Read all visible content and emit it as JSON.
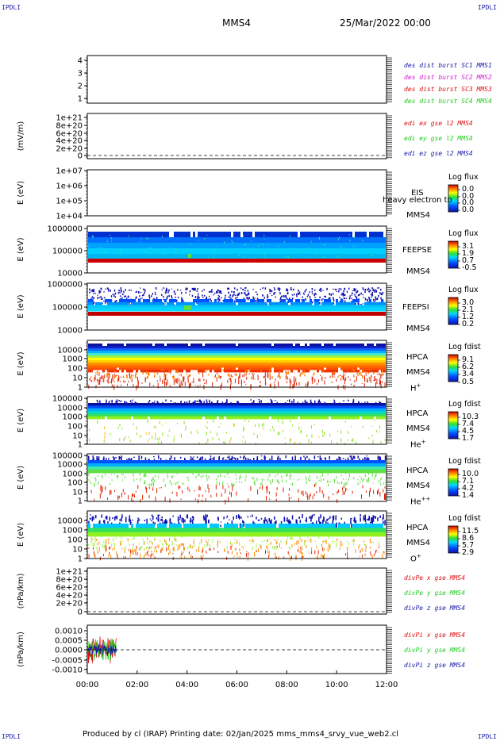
{
  "page": {
    "corner_label": "IPDLI",
    "spacecraft": "MMS4",
    "date_time": "25/Mar/2022 00:00",
    "footer": "Produced by cl (IRAP)   Printing date: 02/Jan/2025   mms_mms4_srvy_vue_web2.cl"
  },
  "colors": {
    "blue": "#1a1aa8",
    "magenta": "#d020d0",
    "red": "#dd1111",
    "green": "#22cc22"
  },
  "chart_data": [
    {
      "id": "dist",
      "type": "line",
      "yticks": [
        "4",
        "3",
        "2",
        "1"
      ],
      "ylim": [
        0.5,
        4.5
      ],
      "legend": [
        {
          "text": "des dist burst SC1 MMS1",
          "color": "blue"
        },
        {
          "text": "des dist burst SC2 MMS2",
          "color": "magenta"
        },
        {
          "text": "des dist burst SC3 MMS3",
          "color": "red"
        },
        {
          "text": "des dist burst SC4 MMS4",
          "color": "green"
        }
      ],
      "series": []
    },
    {
      "id": "edi",
      "type": "line",
      "ylabel": "(mV/m)",
      "yticks": [
        "1e+21",
        "8e+20",
        "6e+20",
        "4e+20",
        "2e+20",
        "0"
      ],
      "ylim": [
        0,
        1e+21
      ],
      "legend": [
        {
          "text": "edi ex gse l2 MMS4",
          "color": "red"
        },
        {
          "text": "edi ey gse l2 MMS4",
          "color": "green"
        },
        {
          "text": "edi ez gse l2 MMS4",
          "color": "blue"
        }
      ],
      "series": []
    },
    {
      "id": "eis",
      "type": "heatmap",
      "ylabel": "E (eV)",
      "yticks": [
        "1e+07",
        "1e+06",
        "1e+05",
        "1e+04"
      ],
      "scale": "log",
      "ylim": [
        10000.0,
        10000000.0
      ],
      "labels": [
        "EIS",
        "heavy electron to",
        "MMS4"
      ],
      "colorbar": {
        "title": "Log flux",
        "ticks": [
          "0.0",
          "0.0",
          "0.0",
          "0.0"
        ]
      }
    },
    {
      "id": "feepse",
      "type": "heatmap",
      "ylabel": "E (eV)",
      "yticks": [
        "1000000",
        "100000",
        "10000"
      ],
      "scale": "log",
      "ylim": [
        10000.0,
        1000000.0
      ],
      "labels": [
        "FEEPSE",
        "MMS4"
      ],
      "colorbar": {
        "title": "Log flux",
        "ticks": [
          "3.1",
          "1.9",
          "0.7",
          "-0.5"
        ]
      }
    },
    {
      "id": "feepsi",
      "type": "heatmap",
      "ylabel": "E (eV)",
      "yticks": [
        "1000000",
        "100000",
        "10000"
      ],
      "scale": "log",
      "ylim": [
        10000.0,
        1000000.0
      ],
      "labels": [
        "FEEPSI",
        "MMS4"
      ],
      "colorbar": {
        "title": "Log flux",
        "ticks": [
          "3.0",
          "2.1",
          "1.2",
          "0.2"
        ]
      }
    },
    {
      "id": "hpca_h",
      "type": "heatmap",
      "ylabel": "E (eV)",
      "yticks": [
        "10000",
        "1000",
        "100",
        "10",
        "1"
      ],
      "scale": "log",
      "ylim": [
        1,
        30000.0
      ],
      "labels": [
        "HPCA",
        "MMS4",
        "H",
        "+"
      ],
      "colorbar": {
        "title": "Log fdist",
        "ticks": [
          "9.1",
          "6.2",
          "3.4",
          "0.5"
        ]
      }
    },
    {
      "id": "hpca_he",
      "type": "heatmap",
      "ylabel": "E (eV)",
      "yticks": [
        "100000",
        "10000",
        "1000",
        "100",
        "10",
        "1"
      ],
      "scale": "log",
      "ylim": [
        1,
        100000.0
      ],
      "labels": [
        "HPCA",
        "MMS4",
        "He",
        "+"
      ],
      "colorbar": {
        "title": "Log fdist",
        "ticks": [
          "10.3",
          "7.4",
          "4.5",
          "1.7"
        ]
      }
    },
    {
      "id": "hpca_he2",
      "type": "heatmap",
      "ylabel": "E (eV)",
      "yticks": [
        "100000",
        "10000",
        "1000",
        "100",
        "10",
        "1"
      ],
      "scale": "log",
      "ylim": [
        1,
        100000.0
      ],
      "labels": [
        "HPCA",
        "MMS4",
        "He",
        "++"
      ],
      "colorbar": {
        "title": "Log fdist",
        "ticks": [
          "10.0",
          "7.1",
          "4.2",
          "1.4"
        ]
      }
    },
    {
      "id": "hpca_o",
      "type": "heatmap",
      "ylabel": "E (eV)",
      "yticks": [
        "10000",
        "1000",
        "100",
        "10",
        "1"
      ],
      "scale": "log",
      "ylim": [
        1,
        30000.0
      ],
      "labels": [
        "HPCA",
        "MMS4",
        "O",
        "+"
      ],
      "colorbar": {
        "title": "Log fdist",
        "ticks": [
          "11.5",
          "8.6",
          "5.7",
          "2.9"
        ]
      }
    },
    {
      "id": "divpe",
      "type": "line",
      "ylabel": "(nPa/km)",
      "yticks": [
        "1e+21",
        "8e+20",
        "6e+20",
        "4e+20",
        "2e+20",
        "0"
      ],
      "ylim": [
        0,
        1e+21
      ],
      "legend": [
        {
          "text": "divPe x gse MMS4",
          "color": "red"
        },
        {
          "text": "divPe y gse MMS4",
          "color": "green"
        },
        {
          "text": "divPe z gse MMS4",
          "color": "blue"
        }
      ],
      "series": []
    },
    {
      "id": "divpi",
      "type": "line",
      "ylabel": "(nPa/km)",
      "yticks": [
        "0.0010",
        "0.0005",
        "0.0000",
        "-0.0005",
        "-0.0010"
      ],
      "ylim": [
        -0.0013,
        0.0013
      ],
      "legend": [
        {
          "text": "divPi x gse MMS4",
          "color": "red"
        },
        {
          "text": "divPi y gse MMS4",
          "color": "green"
        },
        {
          "text": "divPi z gse MMS4",
          "color": "blue"
        }
      ],
      "series": [
        {
          "name": "divPi x gse MMS4",
          "color": "red",
          "x_range": [
            "00:00",
            "01:10"
          ],
          "amplitude": 0.0009
        },
        {
          "name": "divPi y gse MMS4",
          "color": "green",
          "x_range": [
            "00:00",
            "01:10"
          ],
          "amplitude": 0.0007
        },
        {
          "name": "divPi z gse MMS4",
          "color": "blue",
          "x_range": [
            "00:00",
            "01:10"
          ],
          "amplitude": 0.0004
        }
      ]
    }
  ],
  "xaxis": {
    "ticks": [
      "00:00",
      "02:00",
      "04:00",
      "06:00",
      "08:00",
      "10:00",
      "12:00"
    ],
    "range": [
      "00:00",
      "12:00"
    ]
  }
}
